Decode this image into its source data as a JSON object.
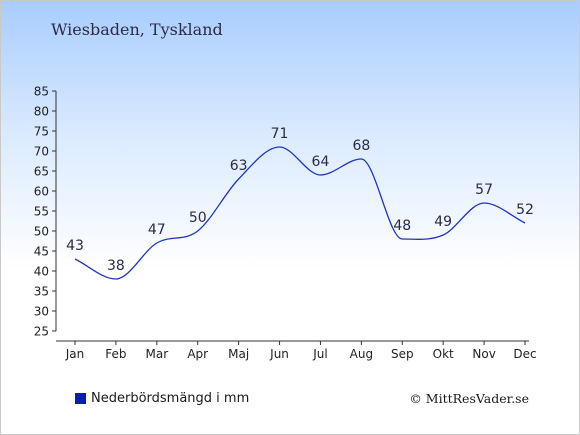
{
  "chart_data": {
    "type": "line",
    "title": "Wiesbaden, Tyskland",
    "categories": [
      "Jan",
      "Feb",
      "Mar",
      "Apr",
      "Maj",
      "Jun",
      "Jul",
      "Aug",
      "Sep",
      "Okt",
      "Nov",
      "Dec"
    ],
    "series": [
      {
        "name": "Nederbördsmängd i mm",
        "values": [
          43,
          38,
          47,
          50,
          63,
          71,
          64,
          68,
          48,
          49,
          57,
          52
        ]
      }
    ],
    "yticks": [
      "25",
      "30",
      "35",
      "40",
      "45",
      "50",
      "55",
      "60",
      "65",
      "70",
      "75",
      "80",
      "85"
    ],
    "ylim": [
      25,
      85
    ],
    "grid": false,
    "line_color": "#2035b8",
    "legend_position": "bottom-left"
  },
  "legend": {
    "label": "Nederbördsmängd i mm",
    "swatch_color": "#0a1fb0"
  },
  "credit": "© MittResVader.se"
}
